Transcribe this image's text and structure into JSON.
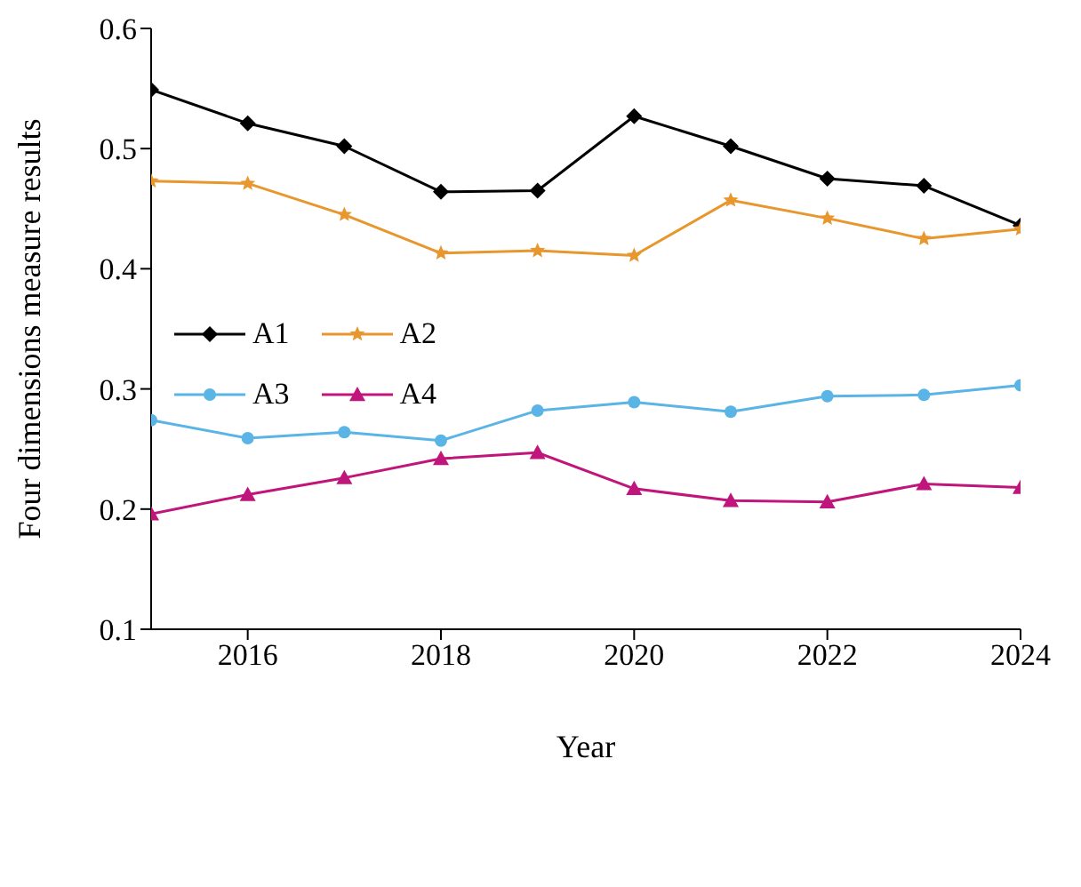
{
  "chart_data": {
    "type": "line",
    "xlabel": "Year",
    "ylabel": "Four dimensions measure results",
    "x": [
      2015,
      2016,
      2017,
      2018,
      2019,
      2020,
      2021,
      2022,
      2023,
      2024
    ],
    "xlim": [
      2015,
      2024
    ],
    "xticks": [
      2016,
      2018,
      2020,
      2022,
      2024
    ],
    "ylim": [
      0.1,
      0.6
    ],
    "yticks": [
      0.1,
      0.2,
      0.3,
      0.4,
      0.5,
      0.6
    ],
    "grid": false,
    "legend": "left",
    "line_style": "solid",
    "series": [
      {
        "name": "A1",
        "color": "#000000",
        "marker": "diamond",
        "values": [
          0.549,
          0.521,
          0.502,
          0.464,
          0.465,
          0.527,
          0.502,
          0.475,
          0.469,
          0.436
        ]
      },
      {
        "name": "A2",
        "color": "#e8962e",
        "marker": "star",
        "values": [
          0.473,
          0.471,
          0.445,
          0.413,
          0.415,
          0.411,
          0.457,
          0.442,
          0.425,
          0.433
        ]
      },
      {
        "name": "A3",
        "color": "#5ab4e5",
        "marker": "circle",
        "values": [
          0.274,
          0.259,
          0.264,
          0.257,
          0.282,
          0.289,
          0.281,
          0.294,
          0.295,
          0.303
        ]
      },
      {
        "name": "A4",
        "color": "#c0157a",
        "marker": "triangle",
        "values": [
          0.196,
          0.212,
          0.226,
          0.242,
          0.247,
          0.217,
          0.207,
          0.206,
          0.221,
          0.218
        ]
      }
    ]
  }
}
